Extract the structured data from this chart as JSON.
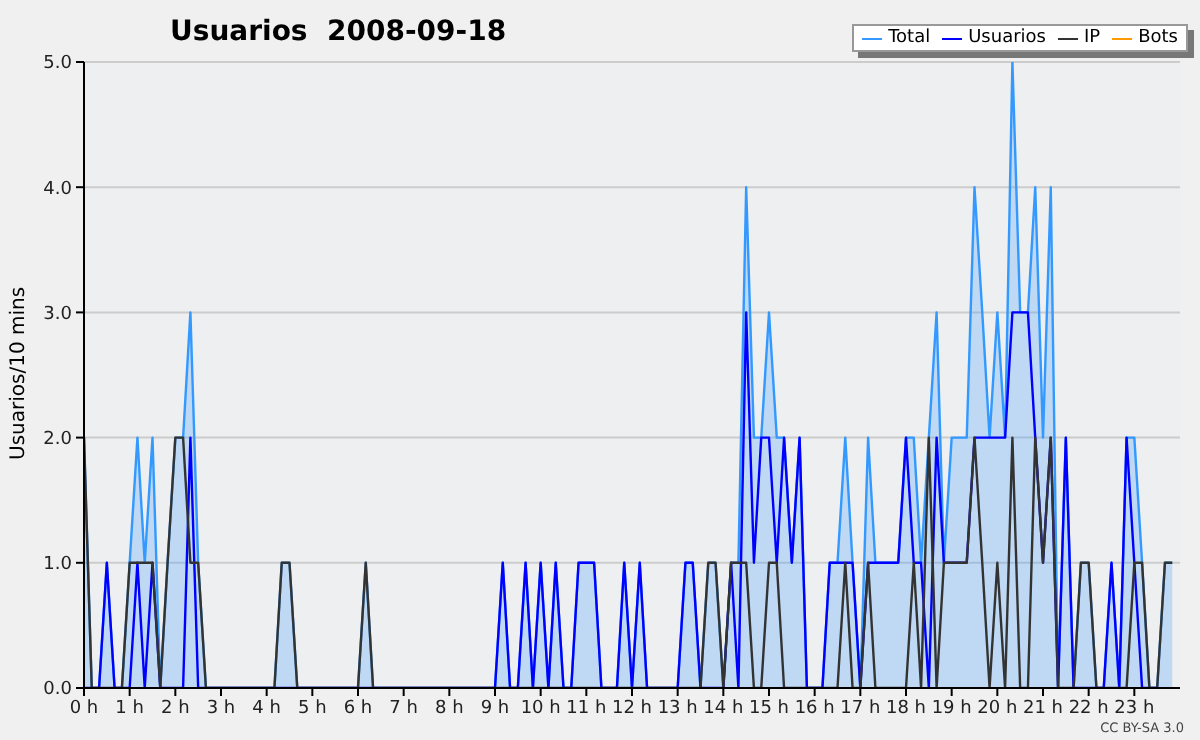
{
  "chart_data": {
    "type": "line",
    "title": "Usuarios  2008-09-18",
    "ylabel": "Usuarios/10 mins",
    "annotations": [
      "CC BY-SA 3.0"
    ],
    "x": [
      0,
      0.17,
      0.33,
      0.5,
      0.67,
      0.83,
      1,
      1.17,
      1.33,
      1.5,
      1.67,
      1.83,
      2,
      2.17,
      2.33,
      2.5,
      2.67,
      2.83,
      3,
      3.17,
      3.33,
      3.5,
      3.67,
      3.83,
      4,
      4.17,
      4.33,
      4.5,
      4.67,
      4.83,
      5,
      5.17,
      5.33,
      5.5,
      5.67,
      5.83,
      6,
      6.17,
      6.33,
      6.5,
      6.67,
      6.83,
      7,
      7.17,
      7.33,
      7.5,
      7.67,
      7.83,
      8,
      8.17,
      8.33,
      8.5,
      8.67,
      8.83,
      9,
      9.17,
      9.33,
      9.5,
      9.67,
      9.83,
      10,
      10.17,
      10.33,
      10.5,
      10.67,
      10.83,
      11,
      11.17,
      11.33,
      11.5,
      11.67,
      11.83,
      12,
      12.17,
      12.33,
      12.5,
      12.67,
      12.83,
      13,
      13.17,
      13.33,
      13.5,
      13.67,
      13.83,
      14,
      14.17,
      14.33,
      14.5,
      14.67,
      14.83,
      15,
      15.17,
      15.33,
      15.5,
      15.67,
      15.83,
      16,
      16.17,
      16.33,
      16.5,
      16.67,
      16.83,
      17,
      17.17,
      17.33,
      17.5,
      17.67,
      17.83,
      18,
      18.17,
      18.33,
      18.5,
      18.67,
      18.83,
      19,
      19.17,
      19.33,
      19.5,
      19.67,
      19.83,
      20,
      20.17,
      20.33,
      20.5,
      20.67,
      20.83,
      21,
      21.17,
      21.33,
      21.5,
      21.67,
      21.83,
      22,
      22.17,
      22.33,
      22.5,
      22.67,
      22.83,
      23,
      23.17,
      23.33,
      23.5,
      23.67,
      23.83
    ],
    "series": [
      {
        "name": "Total",
        "type": "area",
        "color": "#3399ff",
        "values": [
          2,
          0,
          0,
          1,
          0,
          0,
          1,
          2,
          1,
          2,
          0,
          1,
          2,
          2,
          3,
          1,
          0,
          0,
          0,
          0,
          0,
          0,
          0,
          0,
          0,
          0,
          1,
          1,
          0,
          0,
          0,
          0,
          0,
          0,
          0,
          0,
          0,
          1,
          0,
          0,
          0,
          0,
          0,
          0,
          0,
          0,
          0,
          0,
          0,
          0,
          0,
          0,
          0,
          0,
          0,
          1,
          0,
          0,
          1,
          0,
          1,
          0,
          1,
          0,
          0,
          1,
          1,
          1,
          0,
          0,
          0,
          1,
          0,
          1,
          0,
          0,
          0,
          0,
          0,
          1,
          1,
          0,
          1,
          1,
          0,
          1,
          1,
          4,
          2,
          2,
          3,
          2,
          2,
          1,
          2,
          0,
          0,
          0,
          1,
          1,
          2,
          1,
          0,
          2,
          1,
          1,
          1,
          1,
          2,
          2,
          1,
          2,
          3,
          1,
          2,
          2,
          2,
          4,
          3,
          2,
          3,
          2,
          5,
          3,
          3,
          4,
          2,
          4,
          0,
          2,
          0,
          1,
          1,
          0,
          0,
          1,
          0,
          2,
          2,
          1,
          0,
          0,
          1,
          1
        ]
      },
      {
        "name": "Usuarios",
        "color": "#0000ff",
        "values": [
          0,
          0,
          0,
          1,
          0,
          0,
          0,
          1,
          0,
          1,
          0,
          0,
          0,
          0,
          2,
          0,
          0,
          0,
          0,
          0,
          0,
          0,
          0,
          0,
          0,
          0,
          0,
          0,
          0,
          0,
          0,
          0,
          0,
          0,
          0,
          0,
          0,
          0,
          0,
          0,
          0,
          0,
          0,
          0,
          0,
          0,
          0,
          0,
          0,
          0,
          0,
          0,
          0,
          0,
          0,
          1,
          0,
          0,
          1,
          0,
          1,
          0,
          1,
          0,
          0,
          1,
          1,
          1,
          0,
          0,
          0,
          1,
          0,
          1,
          0,
          0,
          0,
          0,
          0,
          1,
          1,
          0,
          0,
          0,
          0,
          1,
          0,
          3,
          1,
          2,
          2,
          1,
          2,
          1,
          2,
          0,
          0,
          0,
          1,
          1,
          1,
          1,
          0,
          1,
          1,
          1,
          1,
          1,
          2,
          1,
          1,
          0,
          2,
          1,
          1,
          1,
          1,
          2,
          2,
          2,
          2,
          2,
          3,
          3,
          3,
          2,
          1,
          2,
          0,
          2,
          0,
          0,
          0,
          0,
          0,
          1,
          0,
          2,
          1,
          0,
          0,
          0,
          null,
          null
        ]
      },
      {
        "name": "IP",
        "color": "#333333",
        "values": [
          2,
          0,
          0,
          0,
          0,
          0,
          1,
          1,
          1,
          1,
          0,
          1,
          2,
          2,
          1,
          1,
          0,
          0,
          0,
          0,
          0,
          0,
          0,
          0,
          0,
          0,
          1,
          1,
          0,
          0,
          0,
          0,
          0,
          0,
          0,
          0,
          0,
          1,
          0,
          0,
          0,
          0,
          0,
          0,
          0,
          0,
          0,
          0,
          0,
          0,
          0,
          0,
          0,
          0,
          0,
          0,
          0,
          0,
          0,
          0,
          0,
          0,
          0,
          0,
          0,
          0,
          0,
          0,
          0,
          0,
          0,
          0,
          0,
          0,
          0,
          0,
          0,
          0,
          0,
          0,
          0,
          0,
          1,
          1,
          0,
          1,
          1,
          1,
          0,
          0,
          1,
          1,
          0,
          0,
          0,
          0,
          0,
          0,
          0,
          0,
          1,
          0,
          0,
          1,
          0,
          0,
          0,
          0,
          0,
          1,
          0,
          2,
          0,
          1,
          1,
          1,
          1,
          2,
          1,
          0,
          1,
          0,
          2,
          0,
          0,
          2,
          1,
          2,
          0,
          0,
          0,
          1,
          1,
          0,
          0,
          0,
          0,
          0,
          1,
          1,
          0,
          0,
          1,
          1
        ]
      },
      {
        "name": "Bots",
        "color": "#ff9900",
        "values": [
          null,
          null,
          null,
          null,
          null,
          null,
          null,
          null,
          null,
          null,
          null,
          null,
          null,
          null,
          null,
          null,
          null,
          null,
          null,
          null,
          null,
          null,
          null,
          null,
          null,
          null,
          null,
          null,
          null,
          null,
          null,
          null,
          null,
          null,
          null,
          null,
          null,
          null,
          null,
          null,
          null,
          null,
          null,
          null,
          null,
          null,
          null,
          null,
          null,
          null,
          null,
          null,
          null,
          null,
          null,
          null,
          null,
          null,
          null,
          null,
          null,
          null,
          null,
          null,
          null,
          null,
          null,
          null,
          null,
          null,
          null,
          null,
          null,
          null,
          null,
          null,
          null,
          null,
          null,
          null,
          null,
          null,
          null,
          null,
          null,
          null,
          null,
          null,
          null,
          null,
          null,
          null,
          null,
          null,
          null,
          null,
          null,
          null,
          null,
          null,
          null,
          null,
          null,
          null,
          null,
          null,
          null,
          null,
          null,
          null,
          null,
          null,
          null,
          null,
          null,
          null,
          null,
          null,
          null,
          null,
          null,
          null,
          null,
          null,
          null,
          null,
          null,
          null,
          null,
          null,
          null,
          null,
          null,
          null,
          null,
          null,
          null,
          null,
          null,
          null,
          null,
          null,
          null,
          null
        ]
      }
    ],
    "xlim": [
      0,
      24
    ],
    "xticks": [
      {
        "value": 0,
        "label": "0 h"
      },
      {
        "value": 1,
        "label": "1 h"
      },
      {
        "value": 2,
        "label": "2 h"
      },
      {
        "value": 3,
        "label": "3 h"
      },
      {
        "value": 4,
        "label": "4 h"
      },
      {
        "value": 5,
        "label": "5 h"
      },
      {
        "value": 6,
        "label": "6 h"
      },
      {
        "value": 7,
        "label": "7 h"
      },
      {
        "value": 8,
        "label": "8 h"
      },
      {
        "value": 9,
        "label": "9 h"
      },
      {
        "value": 10,
        "label": "10 h"
      },
      {
        "value": 11,
        "label": "11 h"
      },
      {
        "value": 12,
        "label": "12 h"
      },
      {
        "value": 13,
        "label": "13 h"
      },
      {
        "value": 14,
        "label": "14 h"
      },
      {
        "value": 15,
        "label": "15 h"
      },
      {
        "value": 16,
        "label": "16 h"
      },
      {
        "value": 17,
        "label": "17 h"
      },
      {
        "value": 18,
        "label": "18 h"
      },
      {
        "value": 19,
        "label": "19 h"
      },
      {
        "value": 20,
        "label": "20 h"
      },
      {
        "value": 21,
        "label": "21 h"
      },
      {
        "value": 22,
        "label": "22 h"
      },
      {
        "value": 23,
        "label": "23 h"
      }
    ],
    "ylim": [
      0,
      5
    ],
    "yticks": [
      {
        "value": 0,
        "label": "0.0"
      },
      {
        "value": 1,
        "label": "1.0"
      },
      {
        "value": 2,
        "label": "2.0"
      },
      {
        "value": 3,
        "label": "3.0"
      },
      {
        "value": 4,
        "label": "4.0"
      },
      {
        "value": 5,
        "label": "5.0"
      }
    ],
    "grid": "y",
    "legend": "top right",
    "marker": "none"
  }
}
